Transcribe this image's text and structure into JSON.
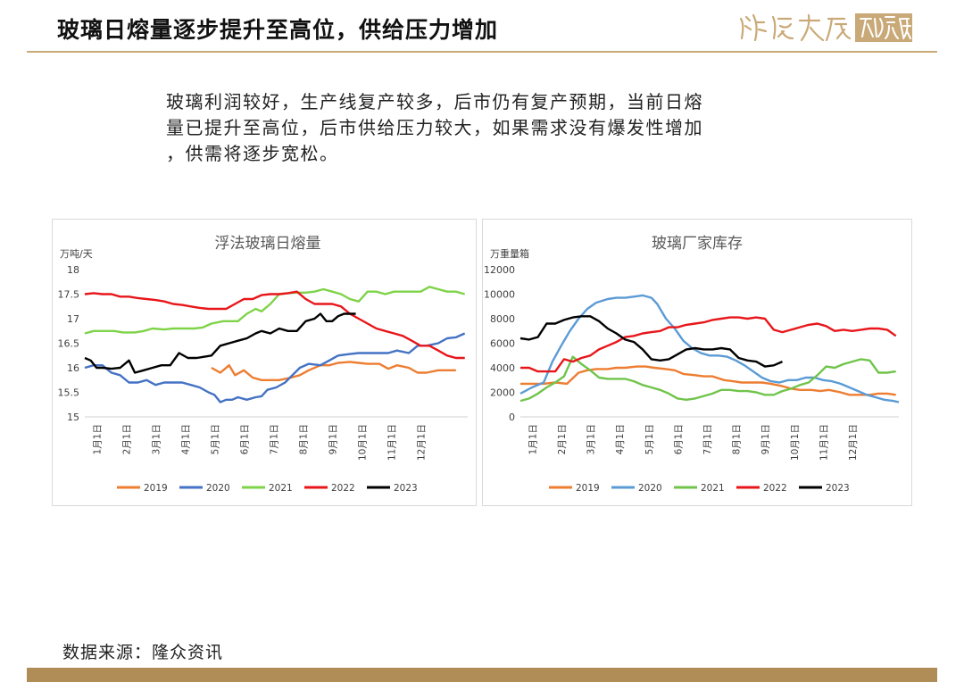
{
  "page": {
    "title": "玻璃日熔量逐步提升至高位，供给压力增加",
    "summary": "玻璃利润较好，生产线复产较多，后市仍有复产预期，当前日熔\n量已提升至高位，后市供给压力较大，如果需求没有爆发性增加\n，供需将逐步宽松。",
    "source": "数据来源：隆众资讯",
    "logo": "渊浩天成研究院",
    "colors": {
      "accent": "#c9a977",
      "bottom_bar": "#b08d57"
    }
  },
  "chart_data": [
    {
      "type": "line",
      "title": "浮法玻璃日熔量",
      "unit": "万吨/天",
      "ylim": [
        15,
        18
      ],
      "yticks": [
        15,
        15.5,
        16,
        16.5,
        17,
        17.5,
        18
      ],
      "x_ticks": [
        "1月1日",
        "2月1日",
        "3月1日",
        "4月1日",
        "5月1日",
        "6月1日",
        "7月1日",
        "8月1日",
        "9月1日",
        "10月1日",
        "11月1日",
        "12月1日"
      ],
      "grid": false,
      "legend": "bottom",
      "series": [
        {
          "name": "2019",
          "color": "#ed7d31",
          "x": [
            4.3,
            4.6,
            4.9,
            5.1,
            5.4,
            5.7,
            6.0,
            6.3,
            6.6,
            7.0,
            7.3,
            7.6,
            8.0,
            8.3,
            8.6,
            9.0,
            9.3,
            9.6,
            10.0,
            10.3,
            10.6,
            11.0,
            11.3,
            11.6,
            12.0,
            12.3,
            12.6
          ],
          "values": [
            16.0,
            15.9,
            16.05,
            15.85,
            15.95,
            15.8,
            15.75,
            15.75,
            15.75,
            15.8,
            15.85,
            15.95,
            16.05,
            16.05,
            16.1,
            16.12,
            16.1,
            16.08,
            16.08,
            15.98,
            16.05,
            16.0,
            15.9,
            15.9,
            15.95,
            15.95,
            15.95
          ]
        },
        {
          "name": "2020",
          "color": "#4472c4",
          "x": [
            0.0,
            0.3,
            0.6,
            0.9,
            1.2,
            1.5,
            1.8,
            2.1,
            2.4,
            2.7,
            3.0,
            3.3,
            3.6,
            3.9,
            4.2,
            4.4,
            4.6,
            4.8,
            5.0,
            5.2,
            5.5,
            5.8,
            6.0,
            6.2,
            6.5,
            6.8,
            7.0,
            7.3,
            7.6,
            8.0,
            8.3,
            8.6,
            9.0,
            9.3,
            9.6,
            10.0,
            10.3,
            10.6,
            11.0,
            11.3,
            11.6,
            12.0,
            12.3,
            12.6,
            12.9
          ],
          "values": [
            16.0,
            16.05,
            16.05,
            15.9,
            15.85,
            15.7,
            15.7,
            15.75,
            15.65,
            15.7,
            15.7,
            15.7,
            15.65,
            15.6,
            15.5,
            15.45,
            15.3,
            15.35,
            15.35,
            15.4,
            15.35,
            15.4,
            15.42,
            15.55,
            15.6,
            15.7,
            15.82,
            16.0,
            16.08,
            16.05,
            16.15,
            16.25,
            16.28,
            16.3,
            16.3,
            16.3,
            16.3,
            16.35,
            16.3,
            16.45,
            16.45,
            16.5,
            16.6,
            16.62,
            16.7
          ]
        },
        {
          "name": "2021",
          "color": "#7ed348",
          "x": [
            0.0,
            0.3,
            0.7,
            1.0,
            1.3,
            1.7,
            2.0,
            2.3,
            2.7,
            3.0,
            3.3,
            3.7,
            4.0,
            4.3,
            4.7,
            5.0,
            5.2,
            5.5,
            5.8,
            6.0,
            6.3,
            6.6,
            6.9,
            7.2,
            7.5,
            7.8,
            8.1,
            8.4,
            8.7,
            9.0,
            9.3,
            9.6,
            9.9,
            10.2,
            10.5,
            10.8,
            11.1,
            11.4,
            11.7,
            12.0,
            12.3,
            12.6,
            12.9
          ],
          "values": [
            16.7,
            16.75,
            16.75,
            16.75,
            16.72,
            16.72,
            16.75,
            16.8,
            16.78,
            16.8,
            16.8,
            16.8,
            16.82,
            16.9,
            16.95,
            16.95,
            16.95,
            17.1,
            17.2,
            17.15,
            17.3,
            17.5,
            17.52,
            17.53,
            17.53,
            17.55,
            17.6,
            17.55,
            17.5,
            17.4,
            17.35,
            17.55,
            17.55,
            17.5,
            17.55,
            17.55,
            17.55,
            17.55,
            17.65,
            17.6,
            17.55,
            17.55,
            17.5
          ]
        },
        {
          "name": "2022",
          "color": "#e8161b",
          "x": [
            0.0,
            0.3,
            0.6,
            0.9,
            1.2,
            1.5,
            1.8,
            2.1,
            2.4,
            2.7,
            3.0,
            3.3,
            3.6,
            3.9,
            4.2,
            4.5,
            4.8,
            5.1,
            5.4,
            5.7,
            6.0,
            6.3,
            6.6,
            6.9,
            7.2,
            7.5,
            7.8,
            8.1,
            8.4,
            8.7,
            9.0,
            9.3,
            9.6,
            9.9,
            10.2,
            10.5,
            10.8,
            11.1,
            11.4,
            11.7,
            12.0,
            12.3,
            12.6,
            12.9
          ],
          "values": [
            17.5,
            17.52,
            17.5,
            17.5,
            17.45,
            17.45,
            17.42,
            17.4,
            17.38,
            17.35,
            17.3,
            17.28,
            17.25,
            17.22,
            17.2,
            17.2,
            17.2,
            17.3,
            17.4,
            17.4,
            17.48,
            17.5,
            17.5,
            17.52,
            17.55,
            17.4,
            17.3,
            17.3,
            17.3,
            17.25,
            17.1,
            17.0,
            16.9,
            16.8,
            16.75,
            16.7,
            16.65,
            16.55,
            16.45,
            16.45,
            16.35,
            16.25,
            16.2,
            16.2
          ]
        },
        {
          "name": "2023",
          "color": "#000000",
          "x": [
            0.0,
            0.2,
            0.4,
            0.6,
            0.9,
            1.2,
            1.5,
            1.7,
            2.0,
            2.3,
            2.6,
            2.9,
            3.2,
            3.5,
            3.8,
            4.0,
            4.3,
            4.6,
            4.9,
            5.2,
            5.5,
            5.8,
            6.0,
            6.3,
            6.6,
            6.9,
            7.2,
            7.5,
            7.8,
            8.0,
            8.2,
            8.4,
            8.6,
            8.8,
            9.0,
            9.2
          ],
          "values": [
            16.2,
            16.15,
            16.0,
            16.0,
            15.98,
            16.0,
            16.15,
            15.9,
            15.95,
            16.0,
            16.05,
            16.05,
            16.3,
            16.2,
            16.2,
            16.22,
            16.25,
            16.45,
            16.5,
            16.55,
            16.6,
            16.7,
            16.75,
            16.7,
            16.8,
            16.75,
            16.75,
            16.95,
            17.0,
            17.1,
            16.95,
            16.95,
            17.05,
            17.1,
            17.1,
            17.1
          ]
        }
      ]
    },
    {
      "type": "line",
      "title": "玻璃厂家库存",
      "unit": "万重量箱",
      "ylim": [
        0,
        12000
      ],
      "yticks": [
        0,
        2000,
        4000,
        6000,
        8000,
        10000,
        12000
      ],
      "x_ticks": [
        "1月1日",
        "2月1日",
        "3月1日",
        "4月1日",
        "5月1日",
        "6月1日",
        "7月1日",
        "8月1日",
        "9月1日",
        "10月1日",
        "11月1日",
        "12月1日"
      ],
      "grid": false,
      "legend": "bottom",
      "series": [
        {
          "name": "2019",
          "color": "#ed7d31",
          "x": [
            0.0,
            0.4,
            0.8,
            1.2,
            1.6,
            2.0,
            2.3,
            2.6,
            3.0,
            3.3,
            3.6,
            4.0,
            4.3,
            4.6,
            5.0,
            5.3,
            5.6,
            6.0,
            6.3,
            6.6,
            7.0,
            7.3,
            7.6,
            8.0,
            8.3,
            8.6,
            9.0,
            9.3,
            9.6,
            10.0,
            10.3,
            10.6,
            11.0,
            11.3,
            11.6,
            12.0,
            12.3,
            12.6,
            12.9
          ],
          "values": [
            2700,
            2700,
            2700,
            2800,
            2700,
            3600,
            3800,
            3900,
            3900,
            4000,
            4000,
            4100,
            4100,
            4000,
            3900,
            3800,
            3500,
            3400,
            3300,
            3300,
            3000,
            2900,
            2800,
            2800,
            2800,
            2700,
            2500,
            2300,
            2200,
            2200,
            2100,
            2200,
            2000,
            1800,
            1800,
            1800,
            1900,
            1900,
            1800
          ]
        },
        {
          "name": "2020",
          "color": "#5b9bd5",
          "x": [
            0.0,
            0.4,
            0.8,
            1.1,
            1.4,
            1.7,
            2.0,
            2.3,
            2.6,
            3.0,
            3.3,
            3.6,
            3.9,
            4.2,
            4.5,
            4.7,
            5.0,
            5.3,
            5.6,
            5.9,
            6.2,
            6.5,
            6.8,
            7.1,
            7.4,
            7.7,
            8.0,
            8.3,
            8.6,
            8.9,
            9.2,
            9.5,
            9.8,
            10.1,
            10.4,
            10.7,
            11.0,
            11.3,
            11.6,
            11.9,
            12.2,
            12.5,
            12.8,
            13.0
          ],
          "values": [
            1900,
            2400,
            2800,
            4500,
            5800,
            7000,
            8000,
            8800,
            9300,
            9600,
            9700,
            9700,
            9800,
            9900,
            9700,
            9200,
            8000,
            7200,
            6200,
            5600,
            5200,
            5000,
            5000,
            4900,
            4600,
            4200,
            3700,
            3200,
            2900,
            2800,
            3000,
            3000,
            3200,
            3200,
            3000,
            2900,
            2700,
            2400,
            2100,
            1800,
            1600,
            1400,
            1300,
            1200
          ]
        },
        {
          "name": "2021",
          "color": "#70c44b",
          "x": [
            0.0,
            0.3,
            0.6,
            0.9,
            1.2,
            1.5,
            1.8,
            2.1,
            2.4,
            2.7,
            3.0,
            3.3,
            3.6,
            3.9,
            4.2,
            4.5,
            4.8,
            5.1,
            5.4,
            5.7,
            6.0,
            6.3,
            6.6,
            6.9,
            7.2,
            7.5,
            7.8,
            8.1,
            8.4,
            8.7,
            9.0,
            9.3,
            9.6,
            9.9,
            10.2,
            10.5,
            10.8,
            11.1,
            11.4,
            11.7,
            12.0,
            12.3,
            12.6,
            12.9
          ],
          "values": [
            1300,
            1500,
            1900,
            2400,
            2800,
            3300,
            4900,
            4300,
            3800,
            3200,
            3100,
            3100,
            3100,
            2900,
            2600,
            2400,
            2200,
            1900,
            1500,
            1400,
            1500,
            1700,
            1900,
            2200,
            2200,
            2100,
            2100,
            2000,
            1800,
            1800,
            2100,
            2300,
            2600,
            2800,
            3400,
            4100,
            4000,
            4300,
            4500,
            4700,
            4600,
            3600,
            3600,
            3700
          ]
        },
        {
          "name": "2022",
          "color": "#e8161b",
          "x": [
            0.0,
            0.3,
            0.6,
            0.9,
            1.2,
            1.5,
            1.8,
            2.1,
            2.4,
            2.7,
            3.0,
            3.3,
            3.6,
            3.9,
            4.2,
            4.5,
            4.8,
            5.1,
            5.4,
            5.7,
            6.0,
            6.3,
            6.6,
            6.9,
            7.2,
            7.5,
            7.8,
            8.1,
            8.4,
            8.7,
            9.0,
            9.3,
            9.6,
            9.9,
            10.2,
            10.5,
            10.8,
            11.1,
            11.4,
            11.7,
            12.0,
            12.3,
            12.6,
            12.9
          ],
          "values": [
            4000,
            4000,
            3700,
            3700,
            3700,
            4700,
            4500,
            4800,
            5000,
            5500,
            5800,
            6100,
            6500,
            6600,
            6800,
            6900,
            7000,
            7300,
            7300,
            7500,
            7600,
            7700,
            7900,
            8000,
            8100,
            8100,
            8000,
            8100,
            8000,
            7100,
            6900,
            7100,
            7300,
            7500,
            7600,
            7400,
            7000,
            7100,
            7000,
            7100,
            7200,
            7200,
            7100,
            6600
          ]
        },
        {
          "name": "2023",
          "color": "#000000",
          "x": [
            0.0,
            0.3,
            0.6,
            0.9,
            1.2,
            1.5,
            1.8,
            2.1,
            2.4,
            2.7,
            3.0,
            3.3,
            3.6,
            3.9,
            4.2,
            4.5,
            4.8,
            5.1,
            5.4,
            5.7,
            6.0,
            6.3,
            6.6,
            6.9,
            7.2,
            7.5,
            7.8,
            8.1,
            8.4,
            8.7,
            9.0
          ],
          "values": [
            6400,
            6300,
            6500,
            7600,
            7600,
            7900,
            8100,
            8200,
            8200,
            7800,
            7200,
            6800,
            6300,
            6100,
            5500,
            4700,
            4600,
            4700,
            5100,
            5500,
            5600,
            5500,
            5500,
            5600,
            5500,
            4800,
            4600,
            4500,
            4100,
            4200,
            4500
          ]
        }
      ]
    }
  ]
}
